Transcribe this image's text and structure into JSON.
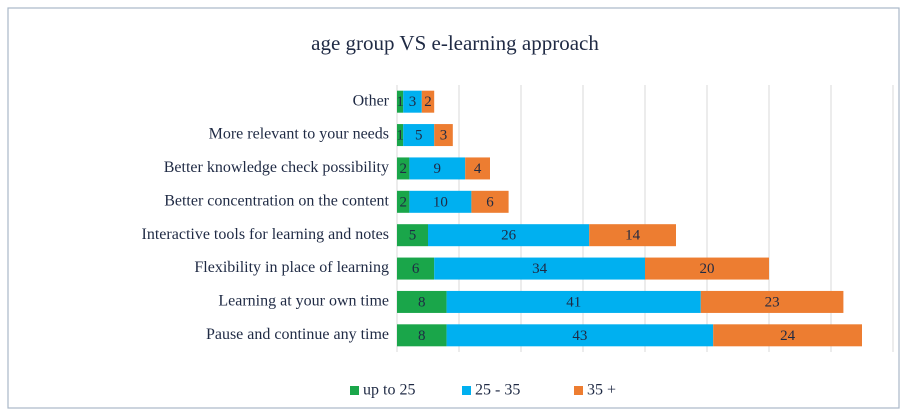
{
  "chart_data": {
    "type": "stacked-bar-horizontal",
    "title": "age group VS e-learning approach",
    "categories": [
      "Other",
      "More relevant to your needs",
      "Better knowledge check possibility",
      "Better concentration on the content",
      "Interactive tools for learning and notes",
      "Flexibility in place of learning",
      "Learning at your own time",
      "Pause and continue any time"
    ],
    "series": [
      {
        "name": "up to 25",
        "color": "#1aa64a",
        "values": [
          1,
          1,
          2,
          2,
          5,
          6,
          8,
          8
        ]
      },
      {
        "name": "25 - 35",
        "color": "#00b0f0",
        "values": [
          3,
          5,
          9,
          10,
          26,
          34,
          41,
          43
        ]
      },
      {
        "name": "35 +",
        "color": "#ed7d31",
        "values": [
          2,
          3,
          4,
          6,
          14,
          20,
          23,
          24
        ]
      }
    ],
    "xlim": [
      0,
      80
    ],
    "xticks": [
      0,
      10,
      20,
      30,
      40,
      50,
      60,
      70,
      80
    ],
    "grid": true,
    "legend": "bottom"
  }
}
